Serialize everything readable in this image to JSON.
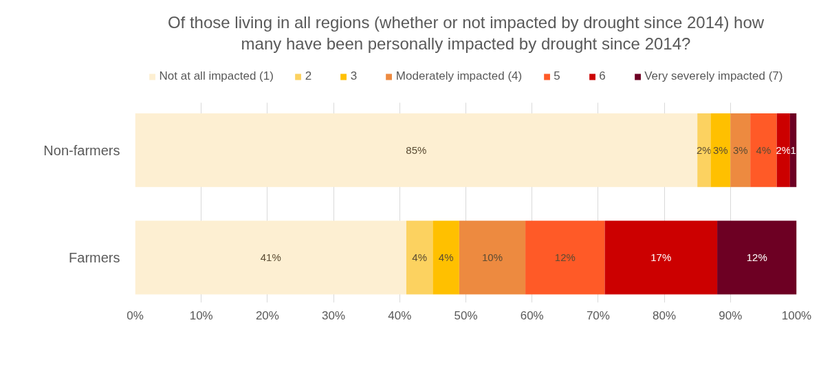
{
  "chart_data": {
    "type": "bar",
    "orientation": "horizontal",
    "stacked": true,
    "title": "Of those living in all regions (whether or not impacted by drought since 2014) how many have been personally impacted by drought since 2014?",
    "categories": [
      "Non-farmers",
      "Farmers"
    ],
    "series": [
      {
        "name": "Not at all impacted (1)",
        "color": "#fdefd2",
        "values": [
          85,
          41
        ],
        "value_labels": [
          "85%",
          "41%"
        ]
      },
      {
        "name": "2",
        "color": "#fcd260",
        "values": [
          2,
          4
        ],
        "value_labels": [
          "2%",
          "4%"
        ]
      },
      {
        "name": "3",
        "color": "#ffc000",
        "values": [
          3,
          4
        ],
        "value_labels": [
          "3%",
          "4%"
        ]
      },
      {
        "name": "Moderately impacted (4)",
        "color": "#ed8a40",
        "values": [
          3,
          10
        ],
        "value_labels": [
          "3%",
          "10%"
        ]
      },
      {
        "name": "5",
        "color": "#ff5a27",
        "values": [
          4,
          12
        ],
        "value_labels": [
          "4%",
          "12%"
        ]
      },
      {
        "name": "6",
        "color": "#cc0000",
        "values": [
          2,
          17
        ],
        "value_labels": [
          "2%",
          "17%"
        ]
      },
      {
        "name": "Very severely impacted (7)",
        "color": "#6d0023",
        "values": [
          1,
          12
        ],
        "value_labels": [
          "1",
          "12%"
        ]
      }
    ],
    "xlim": [
      0,
      100
    ],
    "xticks": [
      {
        "value": 0,
        "label": "0%"
      },
      {
        "value": 10,
        "label": "10%"
      },
      {
        "value": 20,
        "label": "20%"
      },
      {
        "value": 30,
        "label": "30%"
      },
      {
        "value": 40,
        "label": "40%"
      },
      {
        "value": 50,
        "label": "50%"
      },
      {
        "value": 60,
        "label": "60%"
      },
      {
        "value": 70,
        "label": "70%"
      },
      {
        "value": 80,
        "label": "80%"
      },
      {
        "value": 90,
        "label": "90%"
      },
      {
        "value": 100,
        "label": "100%"
      }
    ],
    "grid": "x",
    "legend": "top"
  }
}
